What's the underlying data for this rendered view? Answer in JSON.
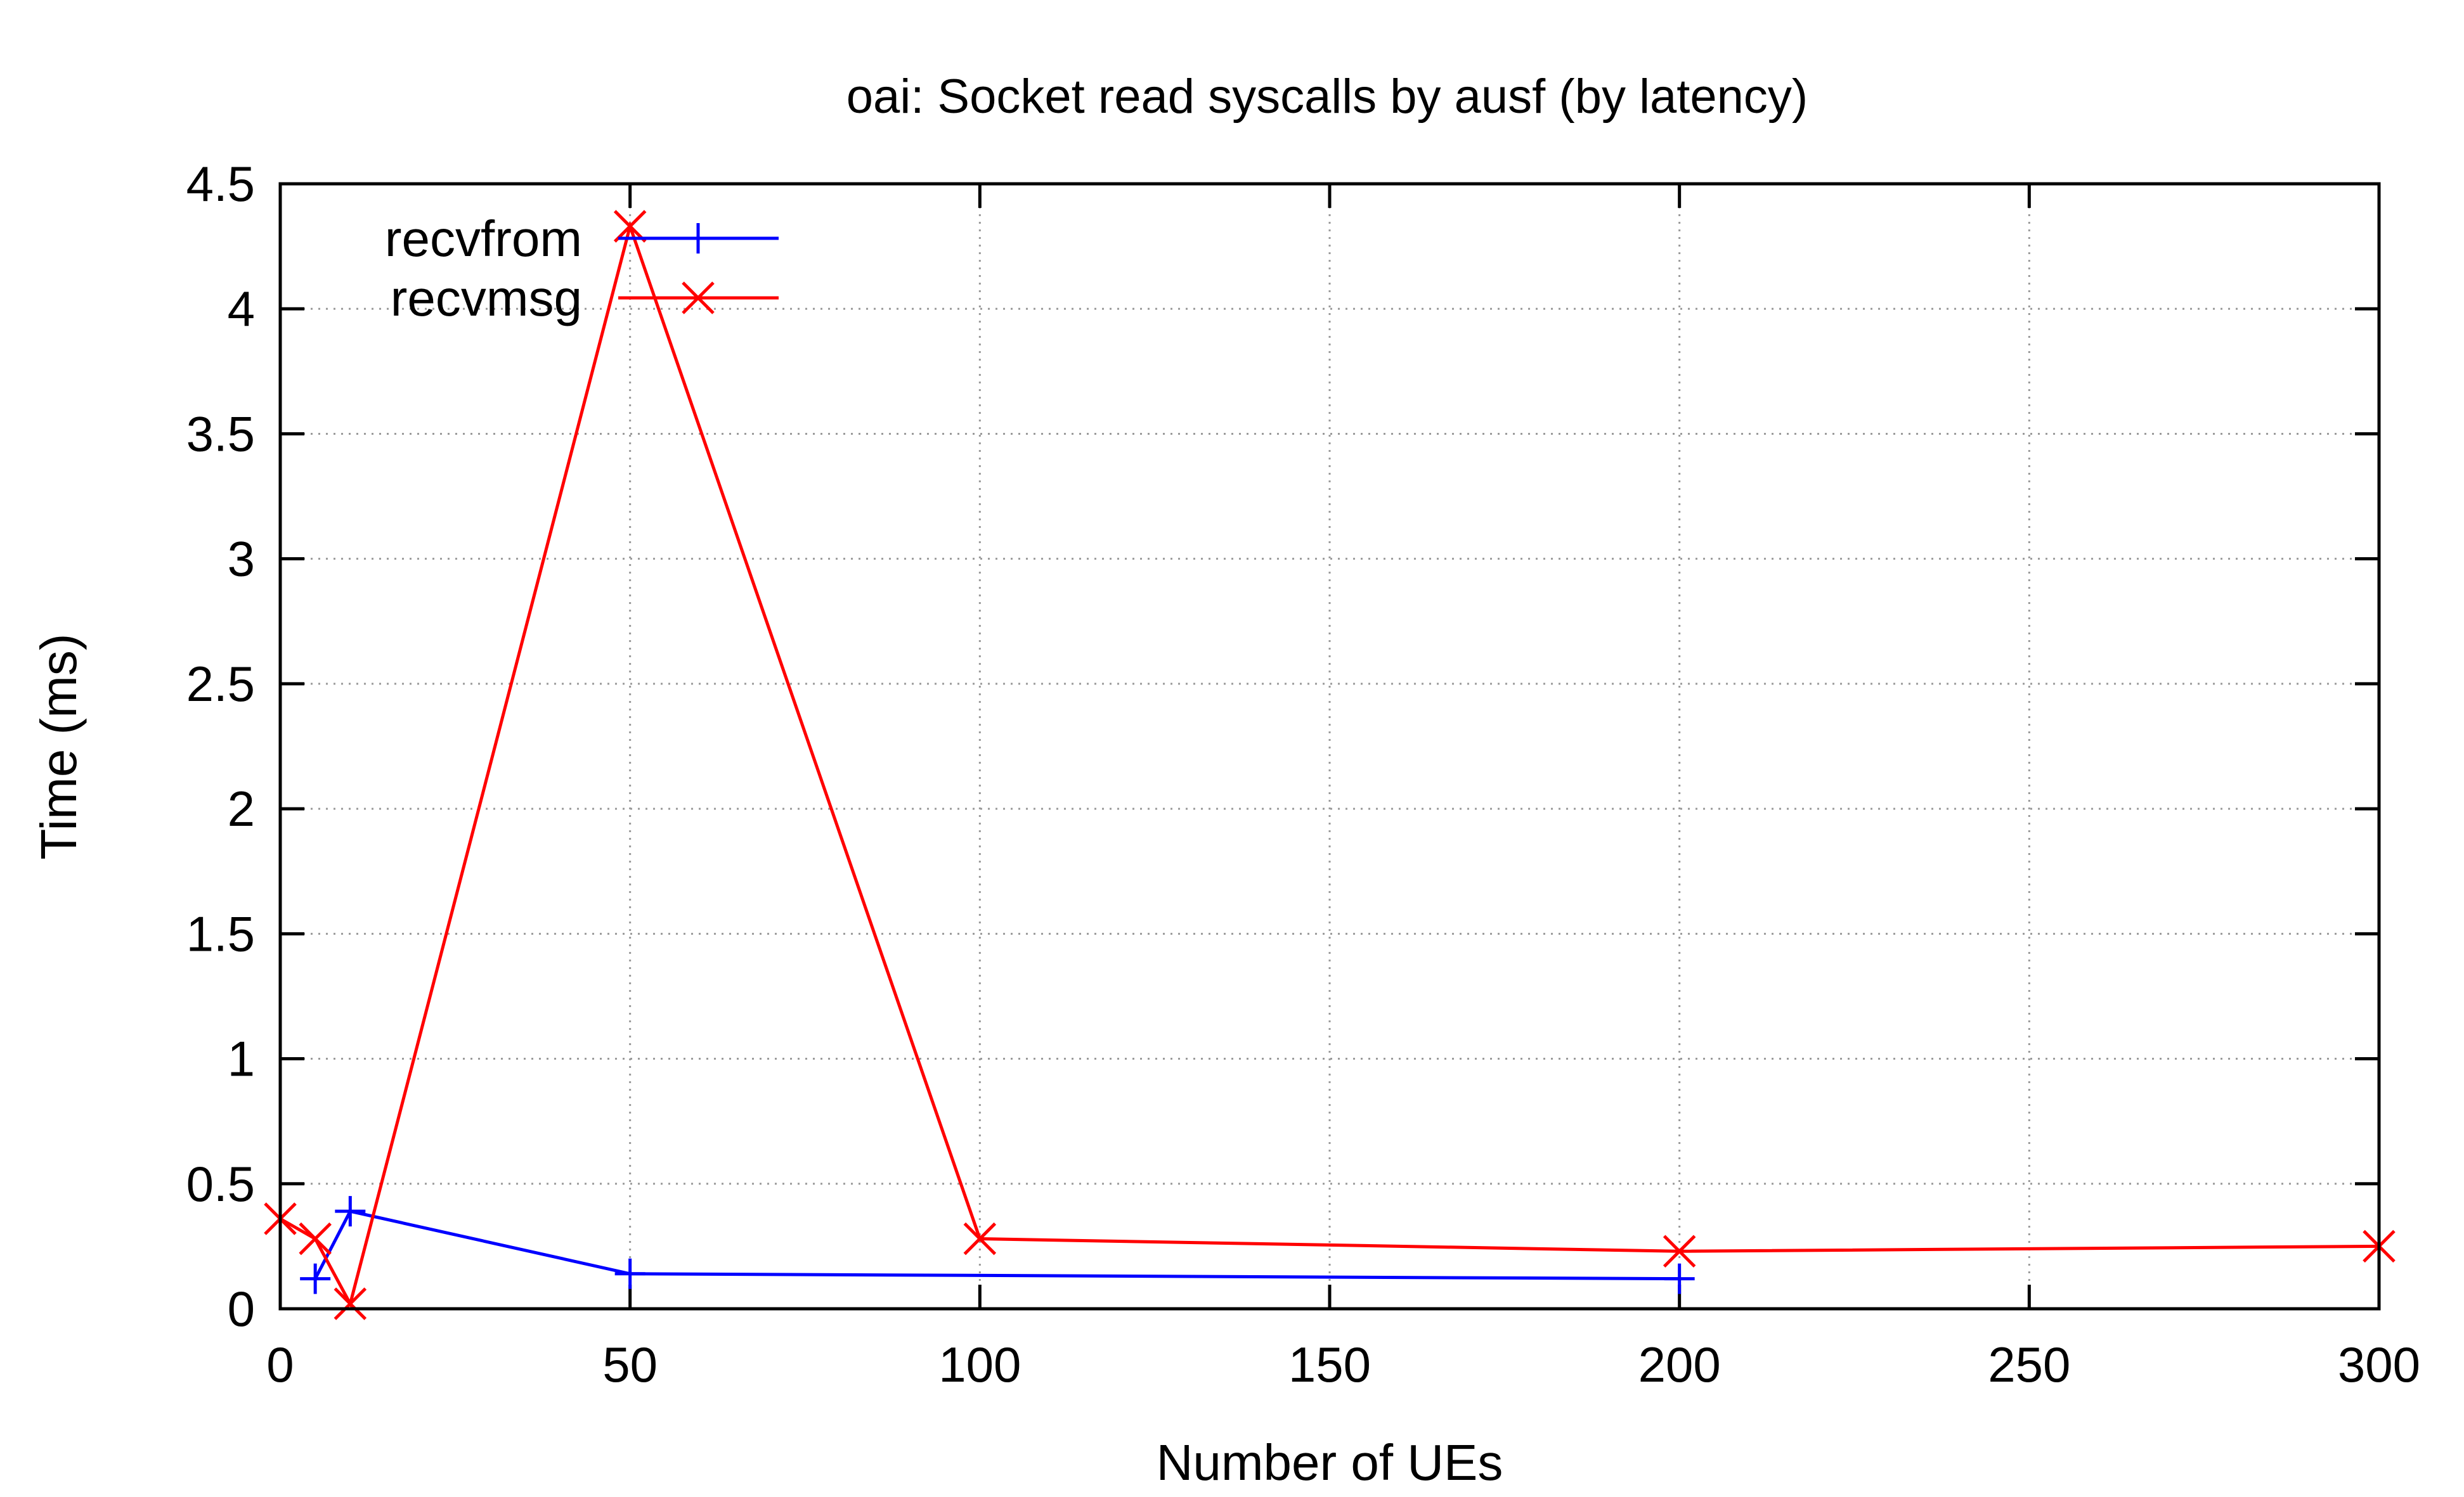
{
  "chart_data": {
    "type": "line",
    "title": "oai: Socket read syscalls by ausf (by latency)",
    "xlabel": "Number of UEs",
    "ylabel": "Time (ms)",
    "xlim": [
      0,
      300
    ],
    "ylim": [
      0,
      4.5
    ],
    "xticks": [
      "0",
      "50",
      "100",
      "150",
      "200",
      "250",
      "300"
    ],
    "yticks": [
      "0",
      "0.5",
      "1",
      "1.5",
      "2",
      "2.5",
      "3",
      "3.5",
      "4",
      "4.5"
    ],
    "grid": true,
    "legend": "top-left",
    "series": [
      {
        "name": "recvfrom",
        "color": "#0000ff",
        "marker": "plus",
        "x": [
          5,
          10,
          50,
          200
        ],
        "y": [
          0.12,
          0.39,
          0.14,
          0.12
        ]
      },
      {
        "name": "recvmsg",
        "color": "#ff0000",
        "marker": "cross",
        "x": [
          0,
          5,
          10,
          50,
          100,
          200,
          300
        ],
        "y": [
          0.36,
          0.28,
          0.02,
          4.33,
          0.28,
          0.23,
          0.25
        ]
      }
    ]
  }
}
